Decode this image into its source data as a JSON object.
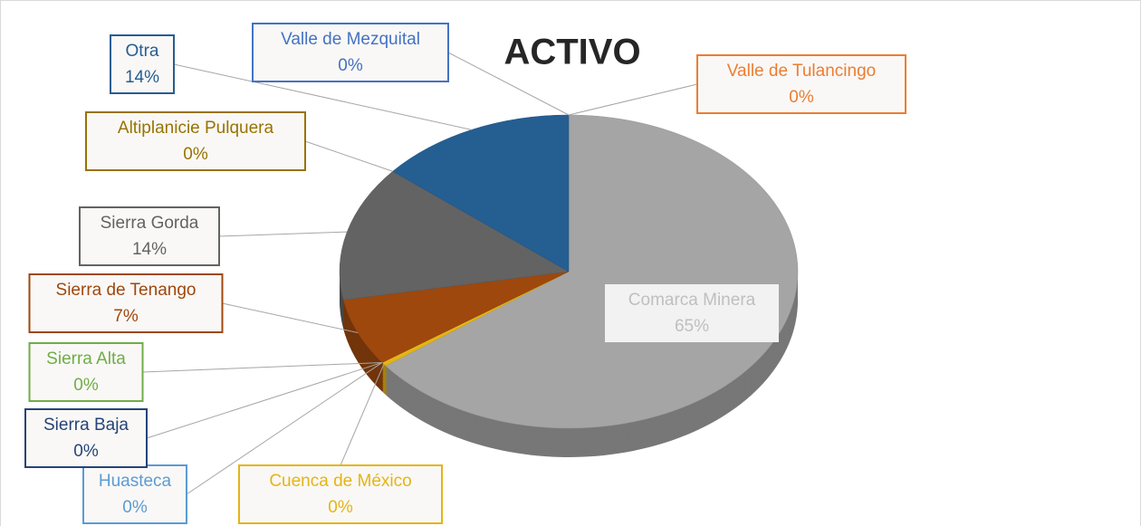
{
  "chart_data": {
    "type": "pie",
    "title": "ACTIVO",
    "categories": [
      "Valle de Tulancingo",
      "Comarca Minera",
      "Cuenca de México",
      "Huasteca",
      "Sierra Baja",
      "Sierra Alta",
      "Sierra de Tenango",
      "Sierra Gorda",
      "Altiplanicie Pulquera",
      "Otra",
      "Valle de Mezquital"
    ],
    "values": [
      0,
      65,
      0.4,
      0,
      0,
      0,
      7,
      14,
      0,
      14,
      0
    ],
    "value_labels": [
      "0%",
      "65%",
      "0%",
      "0%",
      "0%",
      "0%",
      "7%",
      "14%",
      "0%",
      "14%",
      "0%"
    ],
    "colors": [
      "#ed7d31",
      "#a5a5a5",
      "#e6b412",
      "#5b9bd5",
      "#264478",
      "#70ad47",
      "#9e480e",
      "#636363",
      "#997300",
      "#255e91",
      "#4472c4"
    ]
  }
}
